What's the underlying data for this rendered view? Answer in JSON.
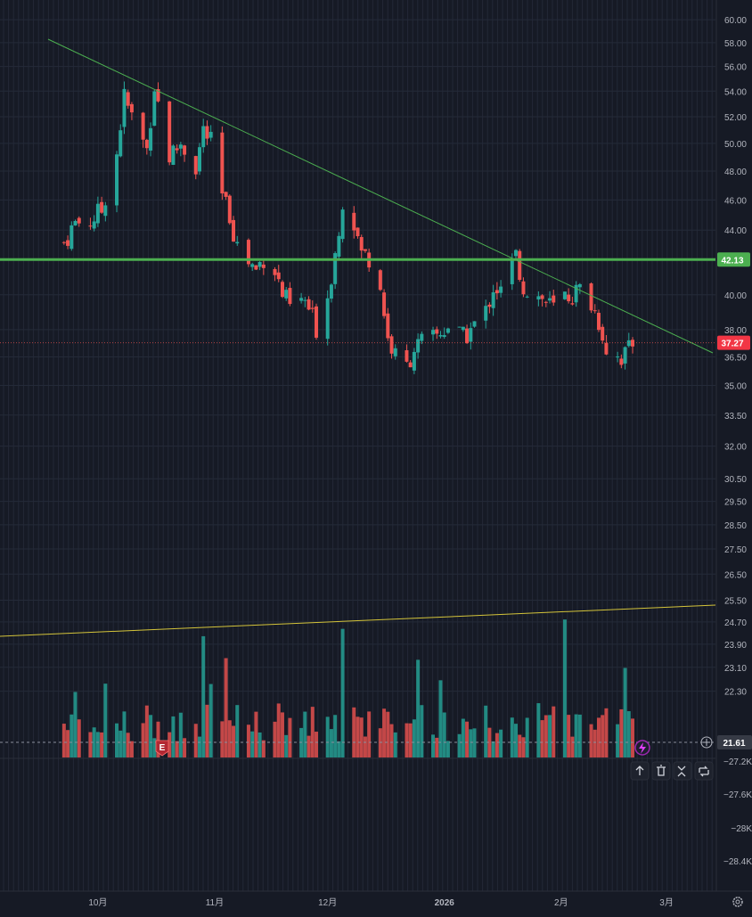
{
  "chart_data": {
    "type": "candlestick",
    "title": "",
    "price_axis": {
      "tick_labels": [
        "60.00",
        "58.00",
        "56.00",
        "54.00",
        "52.00",
        "50.00",
        "48.00",
        "46.00",
        "44.00",
        "40.00",
        "38.00",
        "36.50",
        "35.00",
        "33.50",
        "32.00",
        "30.50",
        "29.50",
        "28.50",
        "27.50",
        "26.50",
        "25.50",
        "24.70",
        "23.90",
        "23.10",
        "22.30"
      ],
      "scale": "log",
      "ylim": [
        21.4,
        60.8
      ]
    },
    "volume_axis": {
      "tick_labels": [
        "−27.2K",
        "−27.6K",
        "−28K",
        "−28.4K"
      ]
    },
    "x_axis": {
      "tick_labels": [
        "10月",
        "11月",
        "12月",
        "2026",
        "2月",
        "3月"
      ],
      "range": [
        "2025-09-05",
        "2026-03-14"
      ]
    },
    "price_labels": {
      "horizontal_line": "42.13",
      "last_price": "37.27",
      "crosshair": "21.61"
    },
    "price_series": [
      {
        "date": "2025-09-22",
        "close": 43.2
      },
      {
        "date": "2025-09-25",
        "close": 44.5
      },
      {
        "date": "2025-09-29",
        "close": 44.6
      },
      {
        "date": "2025-10-02",
        "close": 45.3
      },
      {
        "date": "2025-10-06",
        "close": 49.3
      },
      {
        "date": "2025-10-08",
        "close": 53.5
      },
      {
        "date": "2025-10-10",
        "close": 52.0
      },
      {
        "date": "2025-10-14",
        "close": 49.5
      },
      {
        "date": "2025-10-16",
        "close": 54.5
      },
      {
        "date": "2025-10-20",
        "close": 49.0
      },
      {
        "date": "2025-10-23",
        "close": 50.0
      },
      {
        "date": "2025-10-27",
        "close": 48.3
      },
      {
        "date": "2025-10-29",
        "close": 51.0
      },
      {
        "date": "2025-10-31",
        "close": 50.0
      },
      {
        "date": "2025-11-03",
        "close": 46.2
      },
      {
        "date": "2025-11-05",
        "close": 45.0
      },
      {
        "date": "2025-11-07",
        "close": 43.0
      },
      {
        "date": "2025-11-10",
        "close": 42.0
      },
      {
        "date": "2025-11-12",
        "close": 41.5
      },
      {
        "date": "2025-11-14",
        "close": 42.3
      },
      {
        "date": "2025-11-17",
        "close": 41.5
      },
      {
        "date": "2025-11-19",
        "close": 40.0
      },
      {
        "date": "2025-11-21",
        "close": 39.3
      },
      {
        "date": "2025-11-25",
        "close": 39.6
      },
      {
        "date": "2025-11-28",
        "close": 38.1
      },
      {
        "date": "2025-12-01",
        "close": 40.0
      },
      {
        "date": "2025-12-03",
        "close": 42.5
      },
      {
        "date": "2025-12-05",
        "close": 46.0
      },
      {
        "date": "2025-12-08",
        "close": 44.5
      },
      {
        "date": "2025-12-10",
        "close": 42.5
      },
      {
        "date": "2025-12-12",
        "close": 42.3
      },
      {
        "date": "2025-12-15",
        "close": 40.5
      },
      {
        "date": "2025-12-17",
        "close": 37.5
      },
      {
        "date": "2025-12-19",
        "close": 36.5
      },
      {
        "date": "2025-12-22",
        "close": 36.0
      },
      {
        "date": "2025-12-24",
        "close": 37.0
      },
      {
        "date": "2025-12-29",
        "close": 37.5
      },
      {
        "date": "2026-01-02",
        "close": 38.2
      },
      {
        "date": "2026-01-06",
        "close": 37.5
      },
      {
        "date": "2026-01-08",
        "close": 38.0
      },
      {
        "date": "2026-01-12",
        "close": 39.0
      },
      {
        "date": "2026-01-14",
        "close": 40.5
      },
      {
        "date": "2026-01-16",
        "close": 40.2
      },
      {
        "date": "2026-01-20",
        "close": 42.3
      },
      {
        "date": "2026-01-22",
        "close": 40.5
      },
      {
        "date": "2026-01-26",
        "close": 39.9
      },
      {
        "date": "2026-01-28",
        "close": 39.6
      },
      {
        "date": "2026-01-30",
        "close": 39.2
      },
      {
        "date": "2026-02-02",
        "close": 39.9
      },
      {
        "date": "2026-02-04",
        "close": 40.0
      },
      {
        "date": "2026-02-06",
        "close": 40.3
      },
      {
        "date": "2026-02-09",
        "close": 39.5
      },
      {
        "date": "2026-02-11",
        "close": 38.5
      },
      {
        "date": "2026-02-13",
        "close": 37.0
      },
      {
        "date": "2026-02-17",
        "close": 36.5
      },
      {
        "date": "2026-02-19",
        "close": 36.8
      },
      {
        "date": "2026-02-20",
        "close": 37.27
      }
    ]
  },
  "colors": {
    "up": "#26a69a",
    "down": "#ef5350",
    "horizontal_line": "#4caf50",
    "trendline": "#4caf50",
    "volume_trendline": "#d4c43a",
    "last_price_badge": "#f23645",
    "earnings_marker": "#b22833",
    "flash_marker": "#9c27b0"
  },
  "markers": {
    "earnings": "E",
    "flash_icon": "lightning-icon"
  },
  "toolbar": {
    "icons": [
      "arrow-up-icon",
      "trash-icon",
      "collapse-icon",
      "reset-icon"
    ]
  },
  "axis_buttons": {
    "add": "plus-circle-icon",
    "settings": "gear-icon"
  }
}
